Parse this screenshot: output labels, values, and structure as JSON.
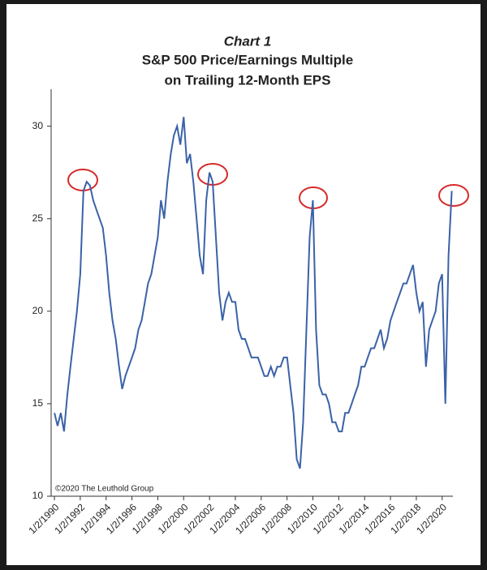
{
  "chart_data": {
    "type": "line",
    "title": "Chart 1",
    "subtitle": [
      "S&P 500 Price/Earnings Multiple",
      "on Trailing 12-Month EPS"
    ],
    "annotation": "©2020 The Leuthold Group",
    "x": [
      "1/2/1990",
      "4/1/1990",
      "7/1/1990",
      "10/1/1990",
      "1/2/1991",
      "4/1/1991",
      "7/1/1991",
      "10/1/1991",
      "1/2/1992",
      "4/1/1992",
      "7/1/1992",
      "10/1/1992",
      "1/2/1993",
      "4/1/1993",
      "7/1/1993",
      "10/1/1993",
      "1/2/1994",
      "4/1/1994",
      "7/1/1994",
      "10/1/1994",
      "1/2/1995",
      "4/1/1995",
      "7/1/1995",
      "10/1/1995",
      "1/2/1996",
      "4/1/1996",
      "7/1/1996",
      "10/1/1996",
      "1/2/1997",
      "4/1/1997",
      "7/1/1997",
      "10/1/1997",
      "1/2/1998",
      "4/1/1998",
      "7/1/1998",
      "10/1/1998",
      "1/2/1999",
      "4/1/1999",
      "7/1/1999",
      "10/1/1999",
      "1/2/2000",
      "4/1/2000",
      "7/1/2000",
      "10/1/2000",
      "1/2/2001",
      "4/1/2001",
      "7/1/2001",
      "10/1/2001",
      "1/2/2002",
      "4/1/2002",
      "7/1/2002",
      "10/1/2002",
      "1/2/2003",
      "4/1/2003",
      "7/1/2003",
      "10/1/2003",
      "1/2/2004",
      "4/1/2004",
      "7/1/2004",
      "10/1/2004",
      "1/2/2005",
      "4/1/2005",
      "7/1/2005",
      "10/1/2005",
      "1/2/2006",
      "4/1/2006",
      "7/1/2006",
      "10/1/2006",
      "1/2/2007",
      "4/1/2007",
      "7/1/2007",
      "10/1/2007",
      "1/2/2008",
      "4/1/2008",
      "7/1/2008",
      "10/1/2008",
      "1/2/2009",
      "4/1/2009",
      "7/1/2009",
      "10/1/2009",
      "1/2/2010",
      "4/1/2010",
      "7/1/2010",
      "10/1/2010",
      "1/2/2011",
      "4/1/2011",
      "7/1/2011",
      "10/1/2011",
      "1/2/2012",
      "4/1/2012",
      "7/1/2012",
      "10/1/2012",
      "1/2/2013",
      "4/1/2013",
      "7/1/2013",
      "10/1/2013",
      "1/2/2014",
      "4/1/2014",
      "7/1/2014",
      "10/1/2014",
      "1/2/2015",
      "4/1/2015",
      "7/1/2015",
      "10/1/2015",
      "1/2/2016",
      "4/1/2016",
      "7/1/2016",
      "10/1/2016",
      "1/2/2017",
      "4/1/2017",
      "7/1/2017",
      "10/1/2017",
      "1/2/2018",
      "4/1/2018",
      "7/1/2018",
      "10/1/2018",
      "1/2/2019",
      "4/1/2019",
      "7/1/2019",
      "10/1/2019",
      "1/2/2020",
      "4/1/2020",
      "7/1/2020",
      "10/1/2020"
    ],
    "series": [
      {
        "name": "P/E",
        "color": "#3a62a8",
        "values": [
          14.5,
          13.8,
          14.5,
          13.5,
          15.5,
          17,
          18.5,
          20,
          22,
          26.5,
          27,
          26.8,
          26,
          25.5,
          25,
          24.5,
          23,
          21,
          19.5,
          18.5,
          17,
          15.8,
          16.5,
          17,
          17.5,
          18,
          19,
          19.5,
          20.5,
          21.5,
          22,
          23,
          24,
          26,
          25,
          27,
          28.5,
          29.5,
          30,
          29,
          30.5,
          28,
          28.5,
          27,
          25,
          23,
          22,
          26,
          27.5,
          27,
          24,
          21,
          19.5,
          20.5,
          21,
          20.5,
          20.5,
          19,
          18.5,
          18.5,
          18,
          17.5,
          17.5,
          17.5,
          17,
          16.5,
          16.5,
          17,
          16.5,
          17,
          17,
          17.5,
          17.5,
          16,
          14.5,
          12,
          11.5,
          14,
          19,
          24,
          26,
          19,
          16,
          15.5,
          15.5,
          15,
          14,
          14,
          13.5,
          13.5,
          14.5,
          14.5,
          15,
          15.5,
          16,
          17,
          17,
          17.5,
          18,
          18,
          18.5,
          19,
          18,
          18.5,
          19.5,
          20,
          20.5,
          21,
          21.5,
          21.5,
          22,
          22.5,
          21,
          20,
          20.5,
          17,
          19,
          19.5,
          20,
          21.5,
          22,
          15,
          23,
          26.5
        ]
      }
    ],
    "xlim": [
      "10/1/1989",
      "11/1/2020"
    ],
    "xticks": [
      "1/2/1990",
      "1/2/1992",
      "1/2/1994",
      "1/2/1996",
      "1/2/1998",
      "1/2/2000",
      "1/2/2002",
      "1/2/2004",
      "1/2/2006",
      "1/2/2008",
      "1/2/2010",
      "1/2/2012",
      "1/2/2014",
      "1/2/2016",
      "1/2/2018",
      "1/2/2020"
    ],
    "ylim": [
      10,
      32
    ],
    "yticks": [
      10,
      15,
      20,
      25,
      30
    ]
  }
}
